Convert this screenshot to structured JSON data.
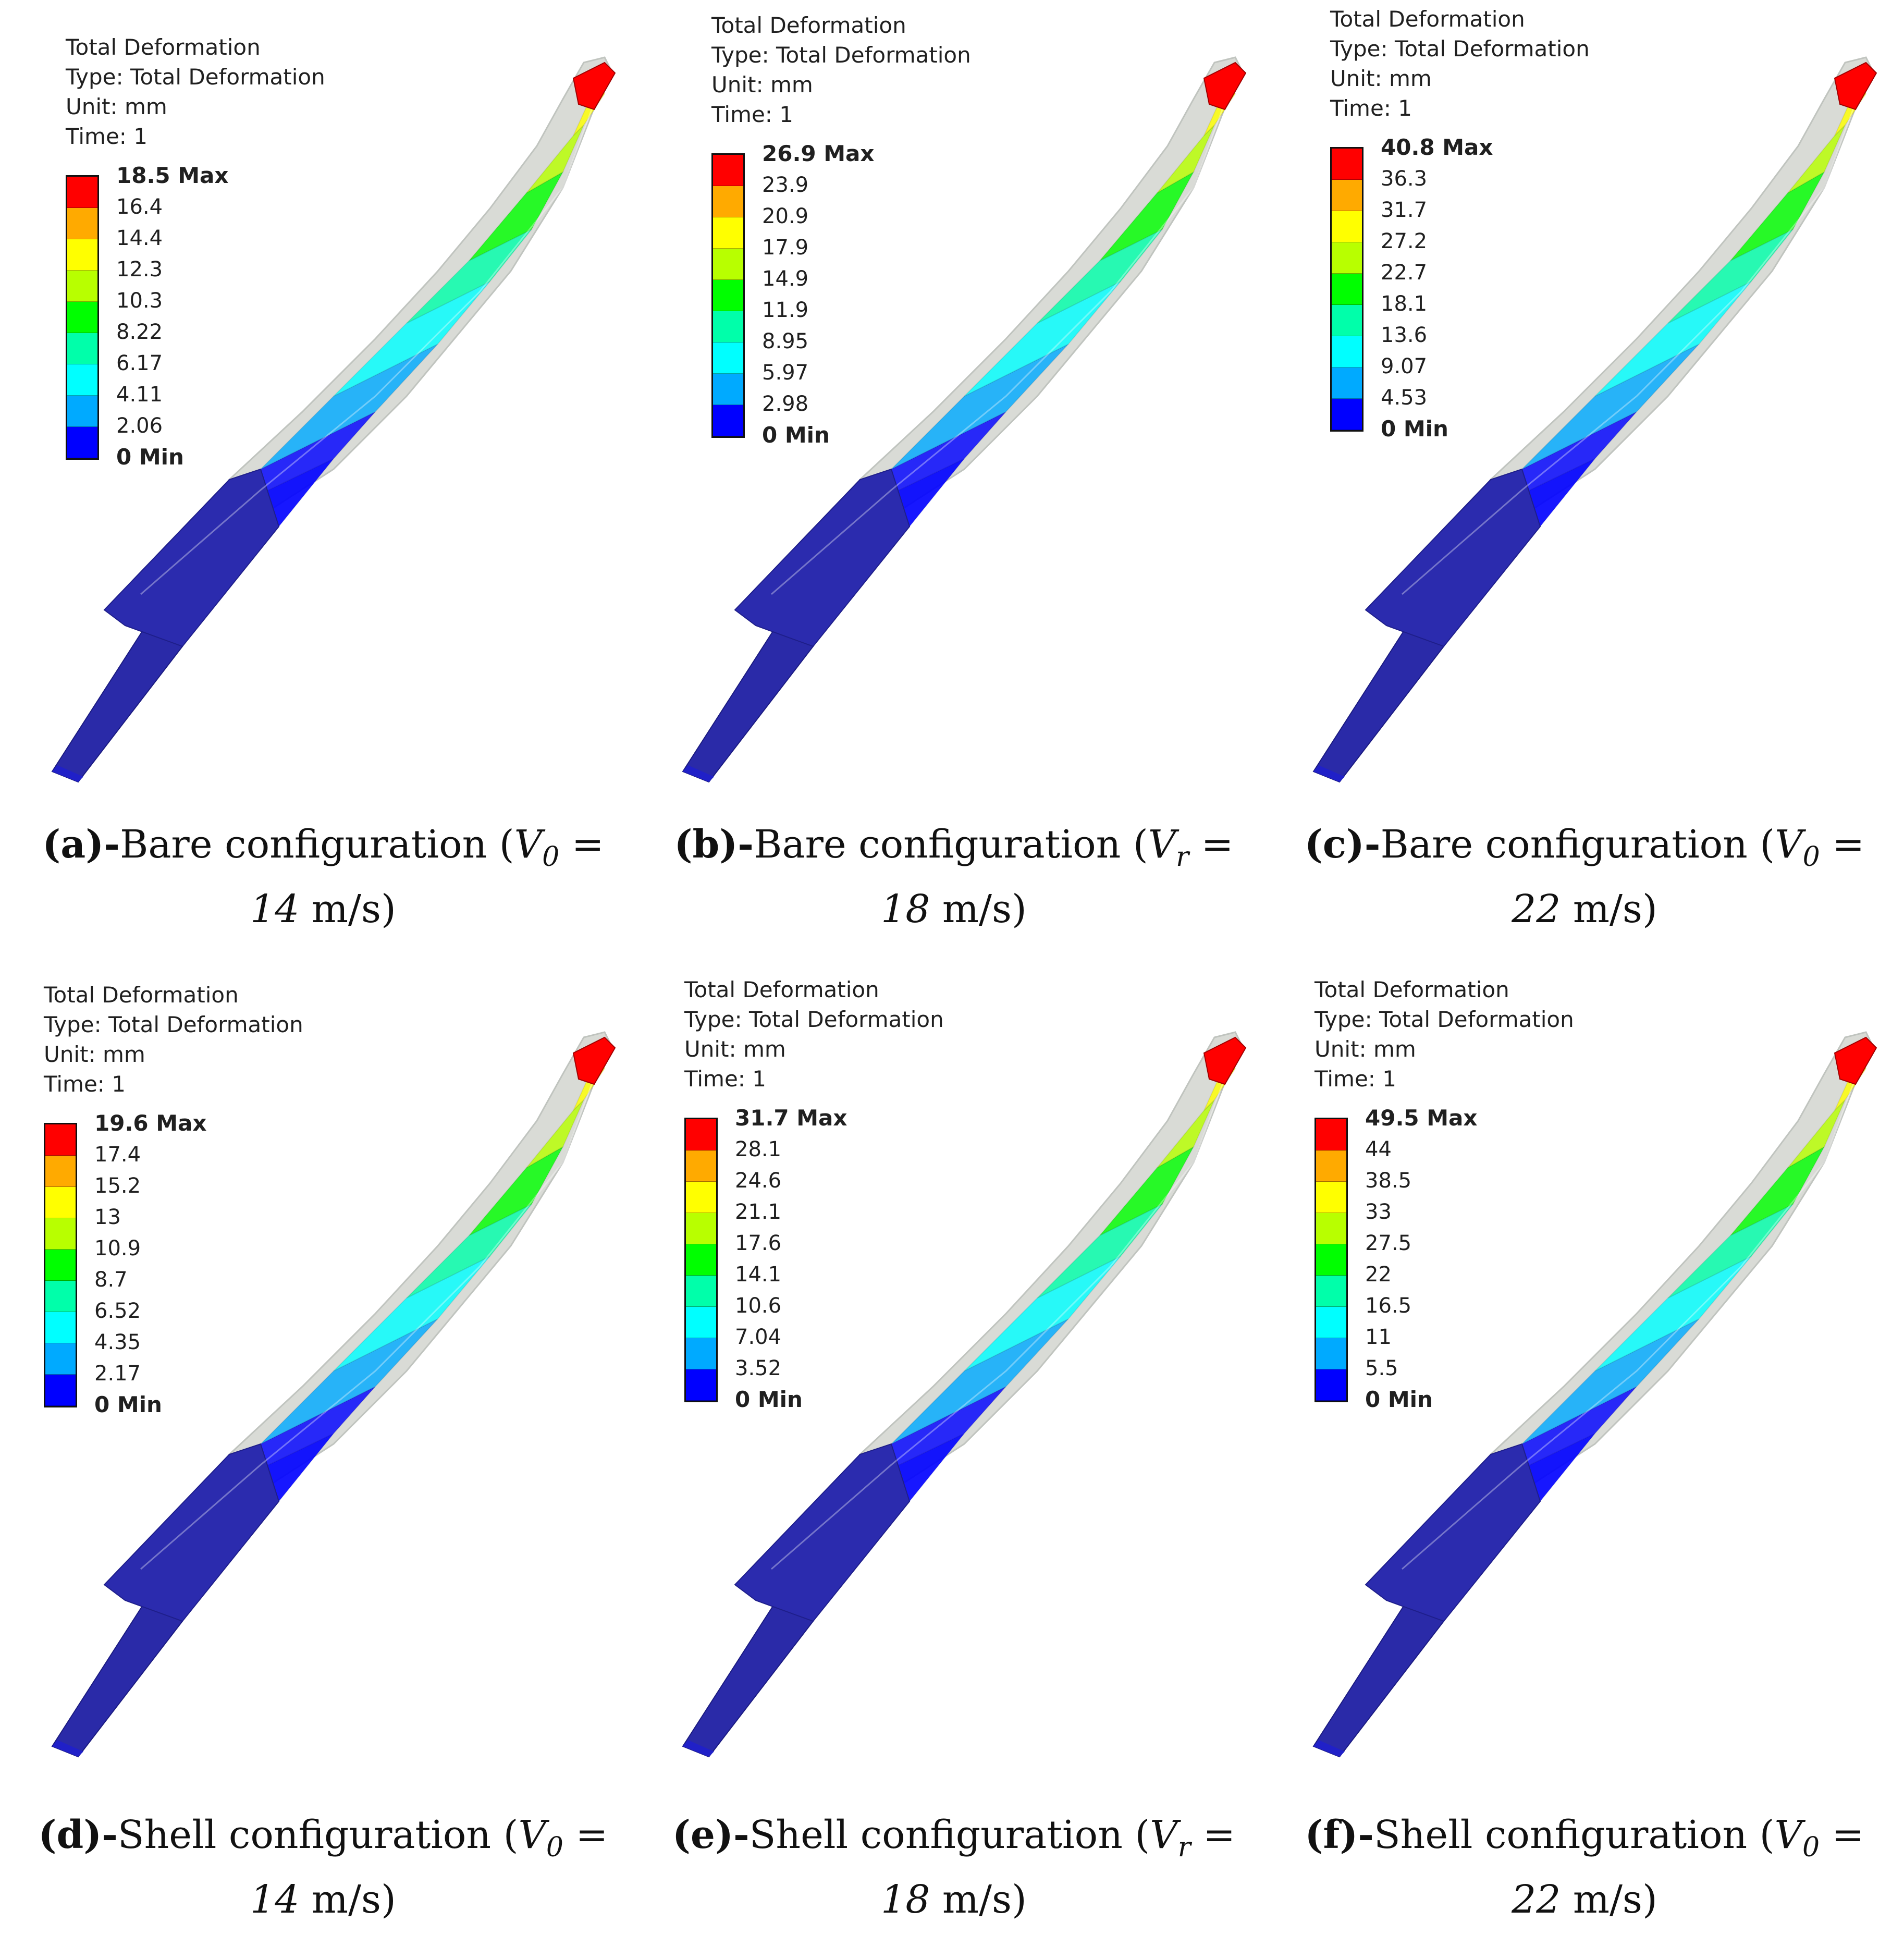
{
  "legend_header": {
    "title": "Total Deformation",
    "type": "Type: Total Deformation",
    "unit": "Unit: mm",
    "time": "Time: 1"
  },
  "colormap": [
    "#ff0000",
    "#ffaa00",
    "#ffff00",
    "#b8ff00",
    "#00ff00",
    "#00ffaa",
    "#00ffff",
    "#00aaff",
    "#0000ff"
  ],
  "panels": [
    {
      "legend_values": [
        "18.5 Max",
        "16.4",
        "14.4",
        "12.3",
        "10.3",
        "8.22",
        "6.17",
        "4.11",
        "2.06",
        "0 Min"
      ],
      "caption": {
        "tag": "(a)-",
        "text": "Bare configuration (",
        "var": "V",
        "sub": "0",
        "eq": " =",
        "speed": "14",
        "unit": " m/s)"
      }
    },
    {
      "legend_values": [
        "26.9 Max",
        "23.9",
        "20.9",
        "17.9",
        "14.9",
        "11.9",
        "8.95",
        "5.97",
        "2.98",
        "0 Min"
      ],
      "caption": {
        "tag": "(b)-",
        "text": "Bare configuration (",
        "var": "V",
        "sub": "r",
        "eq": " =",
        "speed": "18",
        "unit": " m/s)"
      }
    },
    {
      "legend_values": [
        "40.8 Max",
        "36.3",
        "31.7",
        "27.2",
        "22.7",
        "18.1",
        "13.6",
        "9.07",
        "4.53",
        "0 Min"
      ],
      "caption": {
        "tag": "(c)-",
        "text": "Bare configuration (",
        "var": "V",
        "sub": "0",
        "eq": " =",
        "speed": "22",
        "unit": " m/s)"
      }
    },
    {
      "legend_values": [
        "19.6 Max",
        "17.4",
        "15.2",
        "13",
        "10.9",
        "8.7",
        "6.52",
        "4.35",
        "2.17",
        "0 Min"
      ],
      "caption": {
        "tag": "(d)-",
        "text": "Shell configuration (",
        "var": "V",
        "sub": "0",
        "eq": " =",
        "speed": "14",
        "unit": " m/s)"
      }
    },
    {
      "legend_values": [
        "31.7 Max",
        "28.1",
        "24.6",
        "21.1",
        "17.6",
        "14.1",
        "10.6",
        "7.04",
        "3.52",
        "0 Min"
      ],
      "caption": {
        "tag": "(e)-",
        "text": "Shell configuration (",
        "var": "V",
        "sub": "r",
        "eq": " =",
        "speed": "18",
        "unit": " m/s)"
      }
    },
    {
      "legend_values": [
        "49.5 Max",
        "44",
        "38.5",
        "33",
        "27.5",
        "22",
        "16.5",
        "11",
        "5.5",
        "0 Min"
      ],
      "caption": {
        "tag": "(f)-",
        "text": "Shell configuration (",
        "var": "V",
        "sub": "0",
        "eq": " =",
        "speed": "22",
        "unit": " m/s)"
      }
    }
  ]
}
